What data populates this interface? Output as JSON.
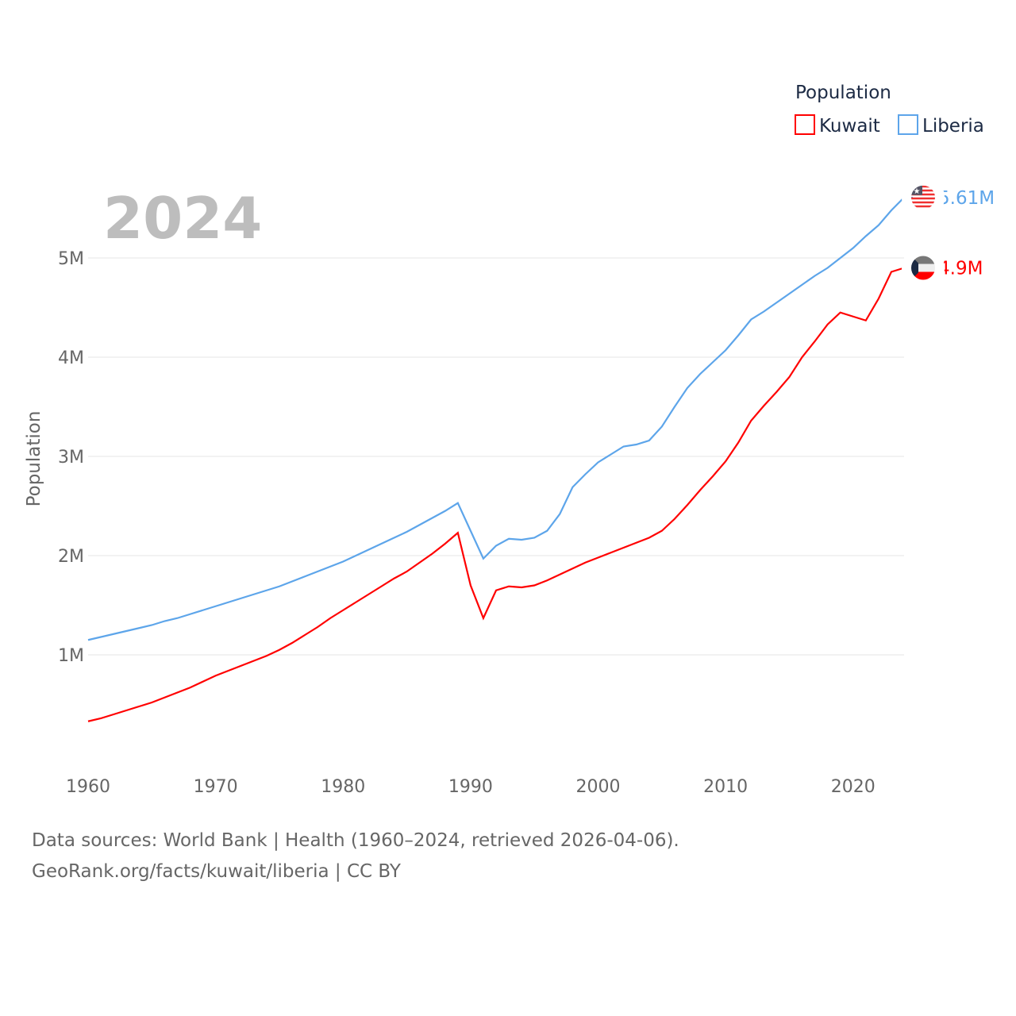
{
  "chart_data": {
    "type": "line",
    "title": "",
    "year_label": "2024",
    "xlabel": "",
    "ylabel": "Population",
    "xlim": [
      1960,
      2024
    ],
    "ylim": [
      0,
      6
    ],
    "x_ticks": [
      "1960",
      "1970",
      "1980",
      "1990",
      "2000",
      "2010",
      "2020"
    ],
    "y_ticks": [
      {
        "v": 1,
        "label": "1M"
      },
      {
        "v": 2,
        "label": "2M"
      },
      {
        "v": 3,
        "label": "3M"
      },
      {
        "v": 4,
        "label": "4M"
      },
      {
        "v": 5,
        "label": "5M"
      }
    ],
    "legend": {
      "title": "Population",
      "position": "top-right",
      "items": [
        "Kuwait",
        "Liberia"
      ]
    },
    "x_start": 1960,
    "series": [
      {
        "name": "Kuwait",
        "color": "#ff0000",
        "end_label": "4.9M",
        "values": [
          0.33,
          0.36,
          0.4,
          0.44,
          0.48,
          0.52,
          0.57,
          0.62,
          0.67,
          0.73,
          0.79,
          0.84,
          0.89,
          0.94,
          0.99,
          1.05,
          1.12,
          1.2,
          1.28,
          1.37,
          1.45,
          1.53,
          1.61,
          1.69,
          1.77,
          1.84,
          1.93,
          2.02,
          2.12,
          2.23,
          1.7,
          1.37,
          1.65,
          1.69,
          1.68,
          1.7,
          1.75,
          1.81,
          1.87,
          1.93,
          1.98,
          2.03,
          2.08,
          2.13,
          2.18,
          2.25,
          2.37,
          2.51,
          2.66,
          2.8,
          2.95,
          3.14,
          3.36,
          3.51,
          3.65,
          3.8,
          4.0,
          4.16,
          4.33,
          4.45,
          4.41,
          4.37,
          4.59,
          4.86,
          4.9
        ]
      },
      {
        "name": "Liberia",
        "color": "#5da5ea",
        "end_label": "5.61M",
        "values": [
          1.15,
          1.18,
          1.21,
          1.24,
          1.27,
          1.3,
          1.34,
          1.37,
          1.41,
          1.45,
          1.49,
          1.53,
          1.57,
          1.61,
          1.65,
          1.69,
          1.74,
          1.79,
          1.84,
          1.89,
          1.94,
          2.0,
          2.06,
          2.12,
          2.18,
          2.24,
          2.31,
          2.38,
          2.45,
          2.53,
          2.25,
          1.97,
          2.1,
          2.17,
          2.16,
          2.18,
          2.25,
          2.42,
          2.69,
          2.82,
          2.94,
          3.02,
          3.1,
          3.12,
          3.16,
          3.3,
          3.5,
          3.69,
          3.83,
          3.95,
          4.07,
          4.22,
          4.38,
          4.46,
          4.55,
          4.64,
          4.73,
          4.82,
          4.9,
          5.0,
          5.1,
          5.22,
          5.33,
          5.48,
          5.61
        ]
      }
    ]
  },
  "footer": {
    "line1": "Data sources: World Bank | Health (1960–2024, retrieved 2026-04-06).",
    "line2": "GeoRank.org/facts/kuwait/liberia | CC BY"
  }
}
